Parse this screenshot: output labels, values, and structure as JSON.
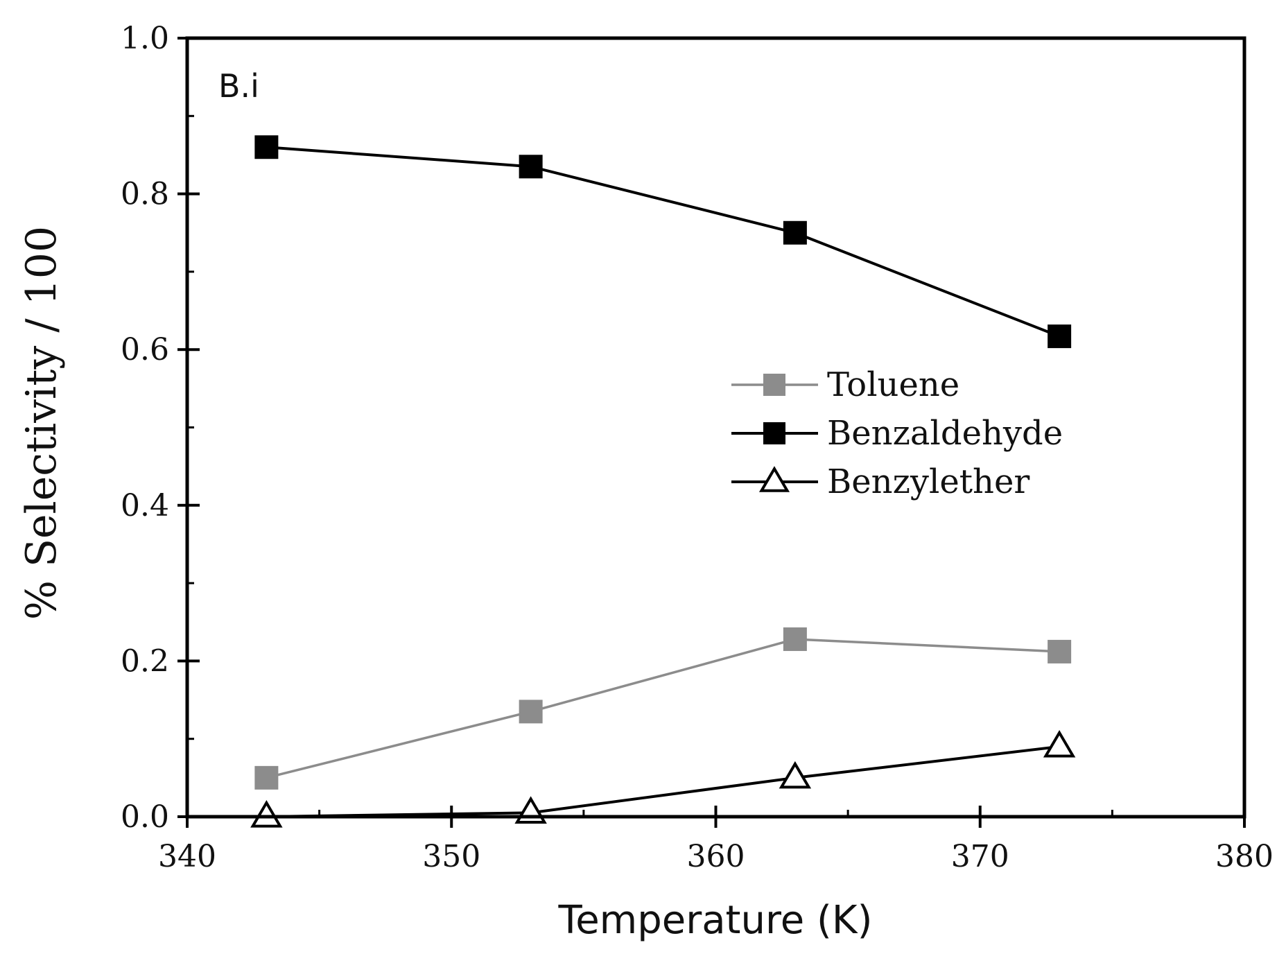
{
  "chart_data": {
    "type": "line",
    "title": "",
    "panel_label": "B.i",
    "xlabel": "Temperature (K)",
    "ylabel": "% Selectivity / 100",
    "xlim": [
      340,
      380
    ],
    "ylim": [
      0.0,
      1.0
    ],
    "x_ticks": [
      340,
      350,
      360,
      370,
      380
    ],
    "x_tick_labels": [
      "340",
      "350",
      "360",
      "370",
      "380"
    ],
    "y_ticks": [
      0.0,
      0.2,
      0.4,
      0.6,
      0.8,
      1.0
    ],
    "y_tick_labels": [
      "0.0",
      "0.2",
      "0.4",
      "0.6",
      "0.8",
      "1.0"
    ],
    "grid": false,
    "legend_position": "center-right",
    "x": [
      343,
      353,
      363,
      373
    ],
    "series": [
      {
        "name": "Toluene",
        "marker": "square",
        "color": "#8c8c8c",
        "values": [
          0.05,
          0.135,
          0.228,
          0.212
        ]
      },
      {
        "name": "Benzaldehyde",
        "marker": "square",
        "color": "#000000",
        "values": [
          0.86,
          0.835,
          0.75,
          0.617
        ]
      },
      {
        "name": "Benzylether",
        "marker": "open-triangle",
        "color": "#000000",
        "values": [
          0.0,
          0.005,
          0.05,
          0.09
        ]
      }
    ]
  }
}
